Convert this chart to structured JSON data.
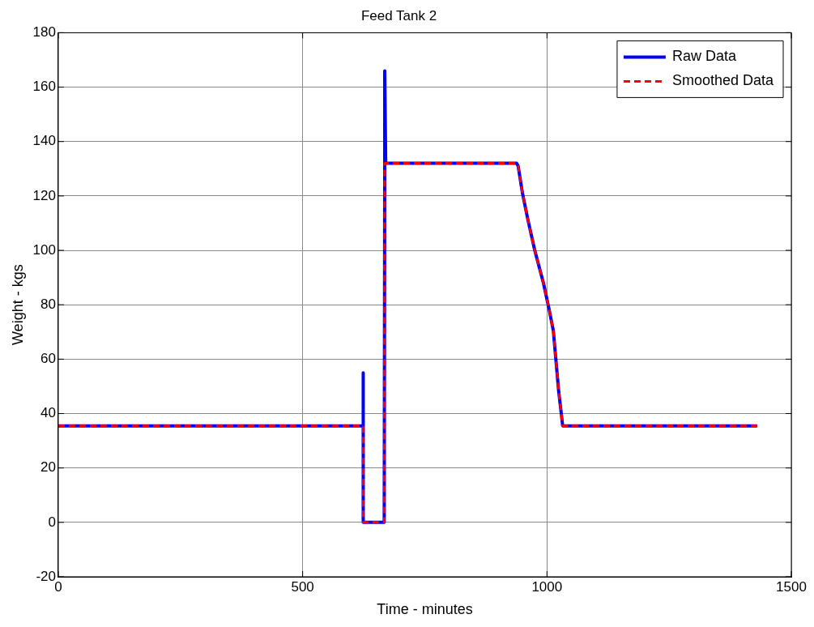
{
  "chart_data": {
    "type": "line",
    "title": "Feed Tank 2",
    "xlabel": "Time - minutes",
    "ylabel": "Weight - kgs",
    "series": [
      {
        "name": "Raw Data",
        "color": "#0000ff",
        "line_style": "solid",
        "x": [
          0,
          624,
          624,
          624,
          667,
          668,
          668,
          670,
          938,
          941,
          950,
          961,
          975,
          993,
          1004,
          1013,
          1018,
          1024,
          1030,
          1032,
          1430
        ],
        "values": [
          35.5,
          35.5,
          55,
          0,
          0,
          132,
          166,
          132,
          132,
          131,
          120.9,
          111.2,
          100,
          87.8,
          78.6,
          70.5,
          60.3,
          48.1,
          38.9,
          35.5,
          35.5
        ]
      },
      {
        "name": "Smoothed Data",
        "color": "#ff0000",
        "line_style": "dashed",
        "x": [
          0,
          624,
          624,
          667,
          668,
          938,
          941,
          950,
          961,
          975,
          993,
          1004,
          1013,
          1018,
          1024,
          1030,
          1032,
          1430
        ],
        "values": [
          35.5,
          35.5,
          0,
          0,
          132,
          132,
          131,
          120.9,
          111.2,
          100,
          87.8,
          78.6,
          70.5,
          60.3,
          48.1,
          38.9,
          35.5,
          35.5
        ]
      }
    ],
    "xlim": [
      0,
      1500
    ],
    "xticks": [
      0,
      500,
      1000,
      1500
    ],
    "ylim": [
      -20,
      180
    ],
    "yticks": [
      -20,
      0,
      20,
      40,
      60,
      80,
      100,
      120,
      140,
      160,
      180
    ],
    "grid": true,
    "legend": "top right",
    "marker": "none"
  }
}
